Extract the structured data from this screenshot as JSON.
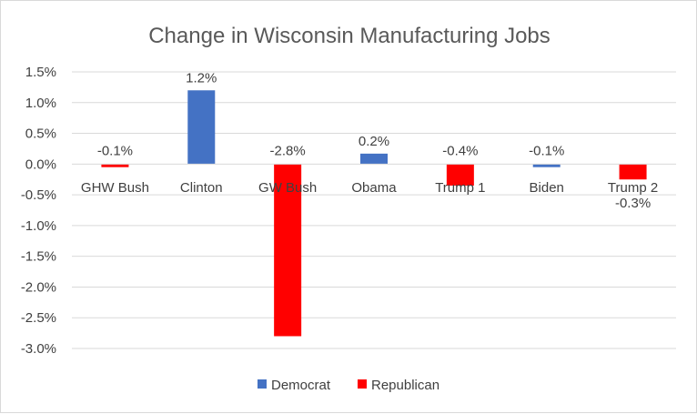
{
  "chart_data": {
    "type": "bar",
    "title": "Change in Wisconsin Manufacturing Jobs",
    "xlabel": "",
    "ylabel": "",
    "categories": [
      "GHW Bush",
      "Clinton",
      "GW Bush",
      "Obama",
      "Trump 1",
      "Biden",
      "Trump 2"
    ],
    "values": [
      -0.05,
      1.2,
      -2.8,
      0.17,
      -0.35,
      -0.05,
      -0.25
    ],
    "data_labels": [
      "-0.1%",
      "1.2%",
      "-2.8%",
      "0.2%",
      "-0.4%",
      "-0.1%",
      "-0.3%"
    ],
    "party": [
      "Republican",
      "Democrat",
      "Republican",
      "Democrat",
      "Republican",
      "Democrat",
      "Republican"
    ],
    "series": [
      {
        "name": "Democrat",
        "color": "#4472c4"
      },
      {
        "name": "Republican",
        "color": "#ff0000"
      }
    ],
    "ylim": [
      -3.0,
      1.5
    ],
    "yticks": [
      1.5,
      1.0,
      0.5,
      0.0,
      -0.5,
      -1.0,
      -1.5,
      -2.0,
      -2.5,
      -3.0
    ],
    "ytick_labels": [
      "1.5%",
      "1.0%",
      "0.5%",
      "0.0%",
      "-0.5%",
      "-1.0%",
      "-1.5%",
      "-2.0%",
      "-2.5%",
      "-3.0%"
    ],
    "grid": true,
    "legend_position": "bottom"
  }
}
